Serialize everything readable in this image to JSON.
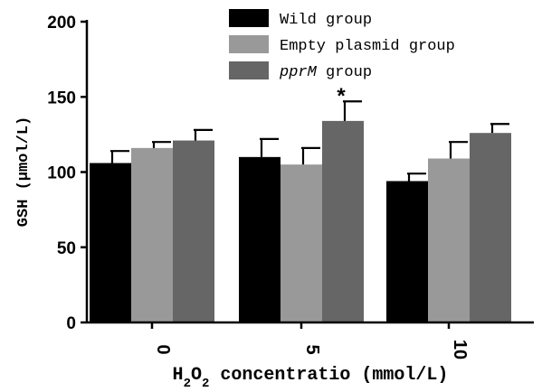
{
  "chart_data": {
    "type": "bar",
    "xlabel": {
      "prefix": "H",
      "sub1": "2",
      "mid": "O",
      "sub2": "2",
      "suffix": " concentratio (mmol/L)"
    },
    "ylabel": "GSH (μmol/L)",
    "ylim": [
      0,
      200
    ],
    "yticks": [
      0,
      50,
      100,
      150,
      200
    ],
    "categories": [
      "0",
      "5",
      "10"
    ],
    "series": [
      {
        "name": "Wild group",
        "color": "#000000",
        "values": [
          106,
          110,
          94
        ],
        "errors": [
          8,
          12,
          5
        ]
      },
      {
        "name": "Empty plasmid group",
        "color": "#999999",
        "values": [
          116,
          105,
          109
        ],
        "errors": [
          4,
          11,
          11
        ]
      },
      {
        "name": "pprM group",
        "name_italic": "pprM",
        "name_rest": " group",
        "color": "#666666",
        "values": [
          121,
          134,
          126
        ],
        "errors": [
          7,
          13,
          6
        ]
      }
    ],
    "annotations": [
      {
        "text": "*",
        "category": "5",
        "series": "pprM group"
      }
    ],
    "legend_position": "top-center",
    "grid": false
  }
}
